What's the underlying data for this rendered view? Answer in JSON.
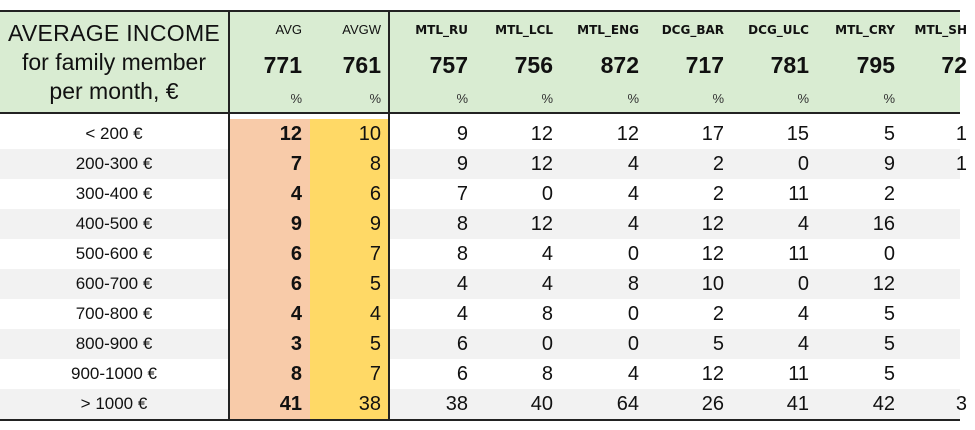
{
  "title": {
    "line1": "AVERAGE INCOME",
    "line2": "for family member",
    "line3": "per month, €"
  },
  "columns": [
    {
      "name": "AVG",
      "value": "771",
      "unit": "%"
    },
    {
      "name": "AVGW",
      "value": "761",
      "unit": "%"
    },
    {
      "name": "MTL_RU",
      "value": "757",
      "unit": "%"
    },
    {
      "name": "MTL_LCL",
      "value": "756",
      "unit": "%"
    },
    {
      "name": "MTL_ENG",
      "value": "872",
      "unit": "%"
    },
    {
      "name": "DCG_BAR",
      "value": "717",
      "unit": "%"
    },
    {
      "name": "DCG_ULC",
      "value": "781",
      "unit": "%"
    },
    {
      "name": "MTL_CRY",
      "value": "795",
      "unit": "%"
    },
    {
      "name": "MTL_SH",
      "value": "72",
      "unit": ""
    }
  ],
  "rows": [
    {
      "label": "< 200 €",
      "cells": [
        "12",
        "10",
        "9",
        "12",
        "12",
        "17",
        "15",
        "5",
        "1"
      ]
    },
    {
      "label": "200-300 €",
      "cells": [
        "7",
        "8",
        "9",
        "12",
        "4",
        "2",
        "0",
        "9",
        "1"
      ]
    },
    {
      "label": "300-400 €",
      "cells": [
        "4",
        "6",
        "7",
        "0",
        "4",
        "2",
        "11",
        "2",
        ""
      ]
    },
    {
      "label": "400-500 €",
      "cells": [
        "9",
        "9",
        "8",
        "12",
        "4",
        "12",
        "4",
        "16",
        ""
      ]
    },
    {
      "label": "500-600 €",
      "cells": [
        "6",
        "7",
        "8",
        "4",
        "0",
        "12",
        "11",
        "0",
        ""
      ]
    },
    {
      "label": "600-700 €",
      "cells": [
        "6",
        "5",
        "4",
        "4",
        "8",
        "10",
        "0",
        "12",
        ""
      ]
    },
    {
      "label": "700-800 €",
      "cells": [
        "4",
        "4",
        "4",
        "8",
        "0",
        "2",
        "4",
        "5",
        ""
      ]
    },
    {
      "label": "800-900 €",
      "cells": [
        "3",
        "5",
        "6",
        "0",
        "0",
        "5",
        "4",
        "5",
        ""
      ]
    },
    {
      "label": "900-1000 €",
      "cells": [
        "8",
        "7",
        "6",
        "8",
        "4",
        "12",
        "11",
        "5",
        ""
      ]
    },
    {
      "label": "> 1000 €",
      "cells": [
        "41",
        "38",
        "38",
        "40",
        "64",
        "26",
        "41",
        "42",
        "3"
      ]
    }
  ],
  "colors": {
    "header_bg": "#d9ecd2",
    "avg_bg": "#f8cba9",
    "avgw_bg": "#ffd966",
    "alt_row_bg": "#f2f2f2"
  }
}
